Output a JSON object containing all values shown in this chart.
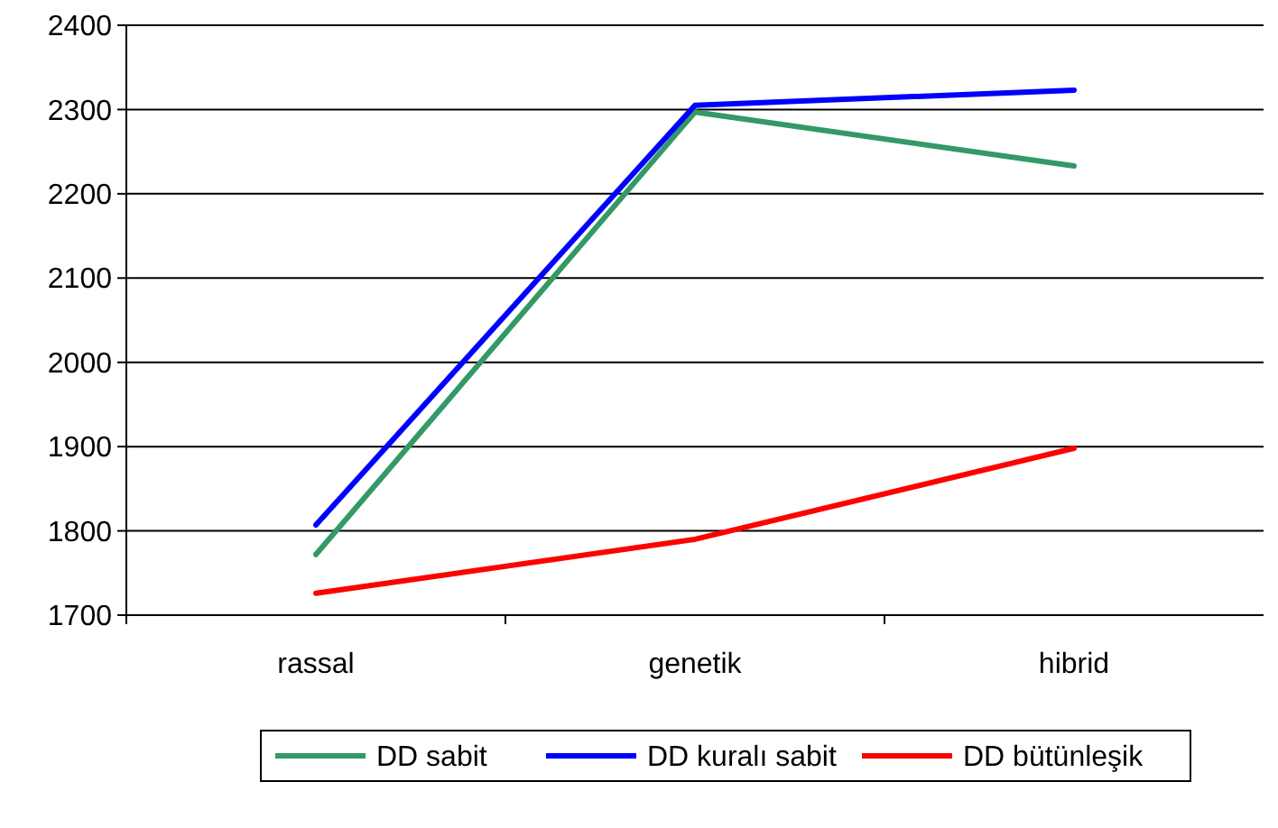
{
  "chart_data": {
    "type": "line",
    "categories": [
      "rassal",
      "genetik",
      "hibrid"
    ],
    "series": [
      {
        "name": "DD sabit",
        "color": "#339966",
        "values": [
          1772,
          2297,
          2233
        ]
      },
      {
        "name": "DD kuralı sabit",
        "color": "#0000ff",
        "values": [
          1807,
          2305,
          2323
        ]
      },
      {
        "name": "DD bütünleşik",
        "color": "#ff0000",
        "values": [
          1726,
          1790,
          1898
        ]
      }
    ],
    "ylim": [
      1700,
      2400
    ],
    "yticks": [
      1700,
      1800,
      1900,
      2000,
      2100,
      2200,
      2300,
      2400
    ],
    "grid": "y",
    "legend": "bottom",
    "marker": "none",
    "line_style": "solid"
  }
}
